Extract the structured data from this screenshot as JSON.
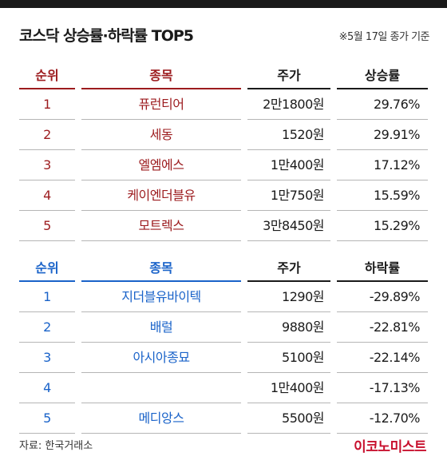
{
  "title": "코스닥 상승률·하락률 TOP5",
  "note": "※5월 17일 종가 기준",
  "colors": {
    "rise": "#9c1b1e",
    "fall": "#1a63c9",
    "brand": "#c8102e"
  },
  "rise_table": {
    "headers": [
      "순위",
      "종목",
      "주가",
      "상승률"
    ],
    "rows": [
      {
        "rank": "1",
        "name": "퓨런티어",
        "price": "2만1800원",
        "rate": "29.76%"
      },
      {
        "rank": "2",
        "name": "세동",
        "price": "1520원",
        "rate": "29.91%"
      },
      {
        "rank": "3",
        "name": "엘엠에스",
        "price": "1만400원",
        "rate": "17.12%"
      },
      {
        "rank": "4",
        "name": "케이엔더블유",
        "price": "1만750원",
        "rate": "15.59%"
      },
      {
        "rank": "5",
        "name": "모트렉스",
        "price": "3만8450원",
        "rate": "15.29%"
      }
    ]
  },
  "fall_table": {
    "headers": [
      "순위",
      "종목",
      "주가",
      "하락률"
    ],
    "rows": [
      {
        "rank": "1",
        "name": "지더블유바이텍",
        "price": "1290원",
        "rate": "-29.89%"
      },
      {
        "rank": "2",
        "name": "배럴",
        "price": "9880원",
        "rate": "-22.81%"
      },
      {
        "rank": "3",
        "name": "아시아종묘",
        "price": "5100원",
        "rate": "-22.14%"
      },
      {
        "rank": "4",
        "name": "",
        "price": "1만400원",
        "rate": "-17.13%"
      },
      {
        "rank": "5",
        "name": "메디앙스",
        "price": "5500원",
        "rate": "-12.70%"
      }
    ]
  },
  "source": "자료: 한국거래소",
  "brand": "이코노미스트"
}
